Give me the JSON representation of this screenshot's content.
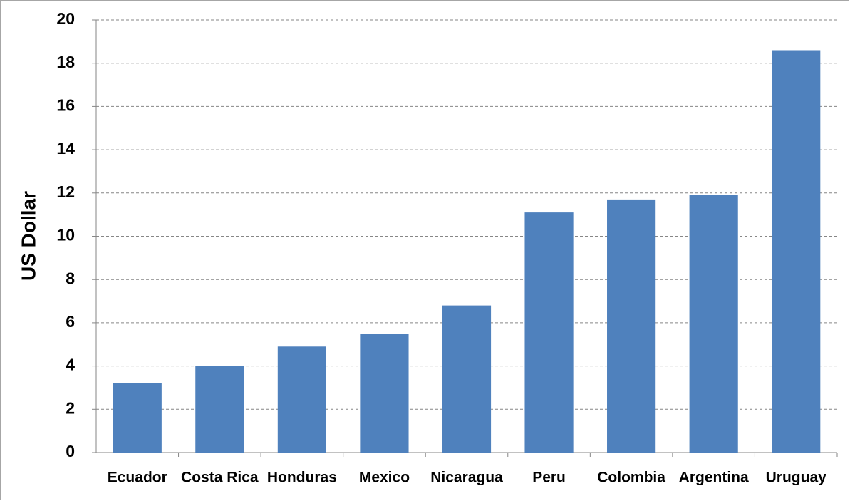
{
  "chart_data": {
    "type": "bar",
    "y_label": "US Dollar",
    "categories": [
      "Ecuador",
      "Costa Rica",
      "Honduras",
      "Mexico",
      "Nicaragua",
      "Peru",
      "Colombia",
      "Argentina",
      "Uruguay"
    ],
    "values": [
      3.2,
      4.0,
      4.9,
      5.5,
      6.8,
      11.1,
      11.7,
      11.9,
      18.6
    ],
    "color": "#4f81bd",
    "ylim": [
      0,
      20
    ],
    "yticks": [
      0,
      2,
      4,
      6,
      8,
      10,
      12,
      14,
      16,
      18,
      20
    ],
    "grid": true
  }
}
